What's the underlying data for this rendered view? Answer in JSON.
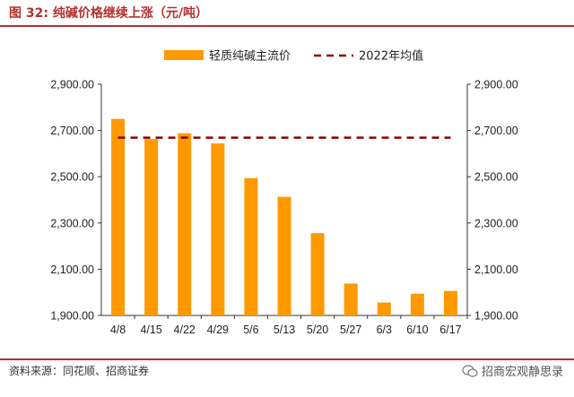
{
  "header": {
    "figure_label": "图 32:",
    "title": "纯碱价格继续上涨（元/吨）"
  },
  "footer": {
    "source": "资料来源：同花顺、招商证券",
    "watermark": "招商宏观静思录"
  },
  "colors": {
    "accent": "#b5302e",
    "bar": "#ff9900",
    "avg_line": "#8b0000"
  },
  "chart_data": {
    "type": "bar",
    "categories": [
      "4/8",
      "4/15",
      "4/22",
      "4/29",
      "5/6",
      "5/13",
      "5/20",
      "5/27",
      "6/3",
      "6/10",
      "6/17"
    ],
    "series": [
      {
        "name": "轻质纯碱主流价",
        "type": "bar",
        "values": [
          2750,
          2663,
          2688,
          2644,
          2494,
          2413,
          2256,
          2038,
          1956,
          1994,
          2006
        ]
      },
      {
        "name": "2022年均值",
        "type": "line",
        "style": "dashed",
        "values": [
          2669,
          2669,
          2669,
          2669,
          2669,
          2669,
          2669,
          2669,
          2669,
          2669,
          2669
        ]
      }
    ],
    "ylim": [
      1900,
      2900
    ],
    "yticks": [
      "1,900.00",
      "2,100.00",
      "2,300.00",
      "2,500.00",
      "2,700.00",
      "2,900.00"
    ],
    "ytick_values": [
      1900,
      2100,
      2300,
      2500,
      2700,
      2900
    ],
    "y_axis_sides": [
      "left",
      "right"
    ],
    "legend_position": "top-center",
    "grid": false,
    "xlabel": "",
    "ylabel": ""
  }
}
